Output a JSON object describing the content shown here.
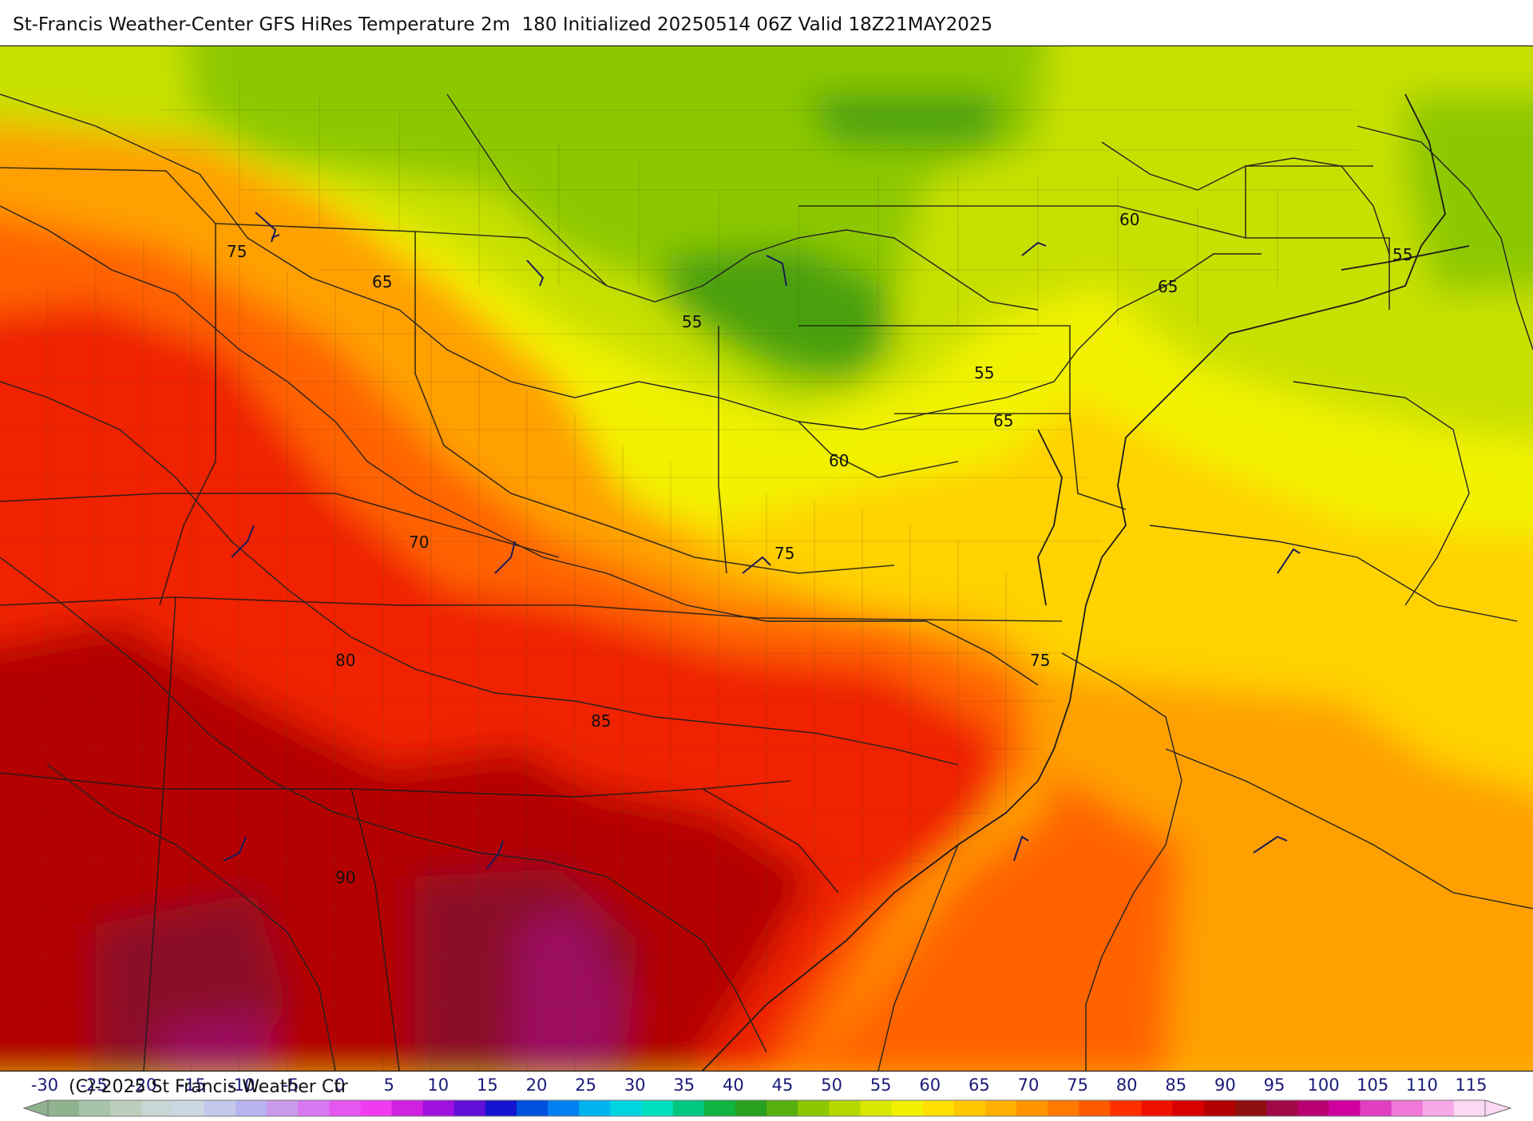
{
  "header": {
    "title": "St-Francis Weather-Center GFS HiRes Temperature 2m  180 Initialized 20250514 06Z Valid 18Z21MAY2025"
  },
  "map": {
    "contour_labels": [
      {
        "id": "lbl-75-nw",
        "text": "75"
      },
      {
        "id": "lbl-65-w",
        "text": "65"
      },
      {
        "id": "lbl-55-c",
        "text": "55"
      },
      {
        "id": "lbl-60-ne",
        "text": "60"
      },
      {
        "id": "lbl-65-ne",
        "text": "65"
      },
      {
        "id": "lbl-55-ne",
        "text": "55"
      },
      {
        "id": "lbl-55-mid",
        "text": "55"
      },
      {
        "id": "lbl-65-md",
        "text": "65"
      },
      {
        "id": "lbl-60-va",
        "text": "60"
      },
      {
        "id": "lbl-70-ky",
        "text": "70"
      },
      {
        "id": "lbl-75-va",
        "text": "75"
      },
      {
        "id": "lbl-80-tn",
        "text": "80"
      },
      {
        "id": "lbl-85-nc",
        "text": "85"
      },
      {
        "id": "lbl-75-coast",
        "text": "75"
      },
      {
        "id": "lbl-90-ga",
        "text": "90"
      }
    ],
    "colors": {
      "cool_green": "#4aa010",
      "green": "#8cc800",
      "yellow_green": "#c8e000",
      "yellow": "#f2f200",
      "gold": "#ffd200",
      "orange": "#ffa000",
      "dark_orange": "#ff6400",
      "red": "#f02000",
      "dark_red": "#b40000",
      "maroon": "#8c0a28",
      "magenta": "#9c1060"
    }
  },
  "colorbar": {
    "ticks": [
      "-30",
      "-25",
      "-20",
      "-15",
      "-10",
      "-5",
      "0",
      "5",
      "10",
      "15",
      "20",
      "25",
      "30",
      "35",
      "40",
      "45",
      "50",
      "55",
      "60",
      "65",
      "70",
      "75",
      "80",
      "85",
      "90",
      "95",
      "100",
      "105",
      "110",
      "115"
    ],
    "colors": [
      "#8fb28f",
      "#a8c4a8",
      "#bccfbc",
      "#c8d6d6",
      "#ccd8e4",
      "#c4c8ec",
      "#b8b4f0",
      "#c89ae8",
      "#d878f0",
      "#e656f0",
      "#f03cf0",
      "#d020e0",
      "#a010e0",
      "#6010d8",
      "#1414d0",
      "#0050e0",
      "#0080f0",
      "#00b4f0",
      "#00d4e0",
      "#00e0c0",
      "#00c880",
      "#10b440",
      "#28a020",
      "#58b010",
      "#8cc800",
      "#b4d800",
      "#d8e800",
      "#f2f200",
      "#ffe000",
      "#ffc800",
      "#ffb000",
      "#ff9400",
      "#ff7800",
      "#ff5a00",
      "#ff3000",
      "#f01000",
      "#d80000",
      "#b40000",
      "#901010",
      "#a00848",
      "#b80070",
      "#d000a0",
      "#e040c0",
      "#f078d8",
      "#f8a8e8",
      "#fcd8f4"
    ],
    "copyright": "(C)-2025 St Francis Weather Ctr"
  }
}
